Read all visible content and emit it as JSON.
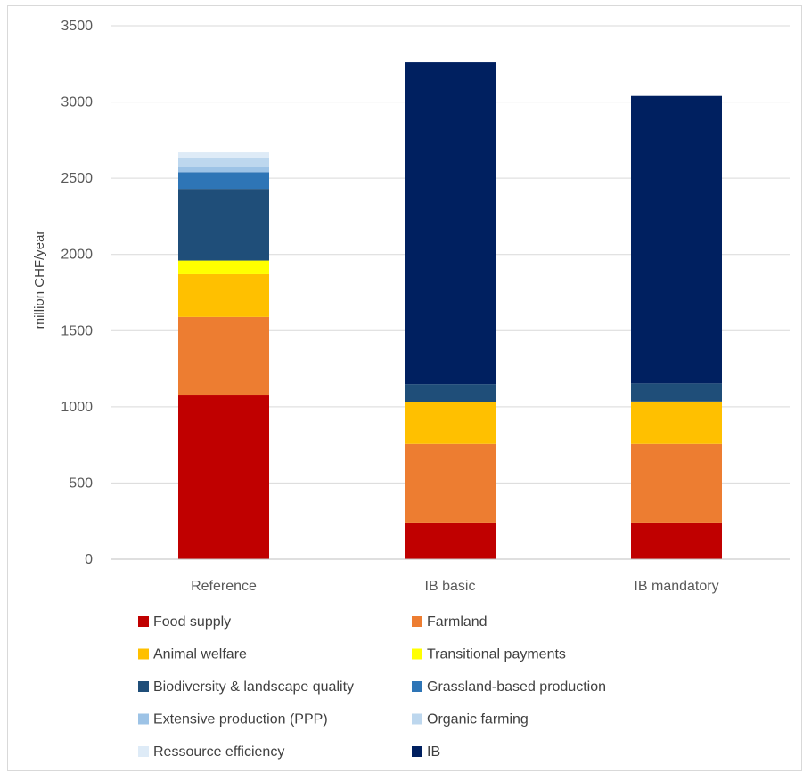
{
  "chart_data": {
    "type": "bar",
    "stacked": true,
    "title": "",
    "xlabel": "",
    "ylabel": "million CHF/year",
    "ylim": [
      0,
      3500
    ],
    "yticks": [
      0,
      500,
      1000,
      1500,
      2000,
      2500,
      3000,
      3500
    ],
    "grid": true,
    "legend_position": "bottom",
    "categories": [
      "Reference",
      "IB basic",
      "IB mandatory"
    ],
    "series": [
      {
        "name": "Food supply",
        "color": "#c00000",
        "values": [
          1075,
          240,
          240
        ]
      },
      {
        "name": "Farmland",
        "color": "#ed7d31",
        "values": [
          515,
          515,
          515
        ]
      },
      {
        "name": "Animal welfare",
        "color": "#ffc000",
        "values": [
          280,
          275,
          280
        ]
      },
      {
        "name": "Transitional payments",
        "color": "#ffff00",
        "values": [
          90,
          0,
          0
        ]
      },
      {
        "name": "Biodiversity & landscape quality",
        "color": "#1f4e79",
        "values": [
          470,
          120,
          120
        ]
      },
      {
        "name": "Grassland-based production",
        "color": "#2e75b6",
        "values": [
          110,
          0,
          0
        ]
      },
      {
        "name": "Extensive production (PPP)",
        "color": "#9dc3e6",
        "values": [
          35,
          0,
          0
        ]
      },
      {
        "name": "Organic farming",
        "color": "#bdd7ee",
        "values": [
          55,
          0,
          0
        ]
      },
      {
        "name": "Ressource efficiency",
        "color": "#deebf7",
        "values": [
          40,
          0,
          0
        ]
      },
      {
        "name": "IB",
        "color": "#002060",
        "values": [
          0,
          2110,
          1885
        ]
      }
    ]
  }
}
